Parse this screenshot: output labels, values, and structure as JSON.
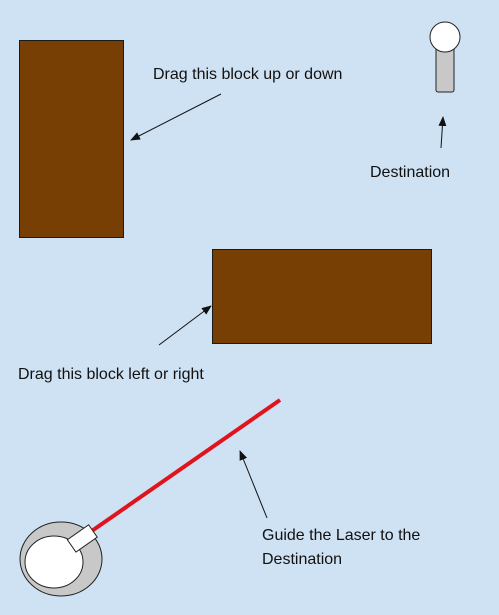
{
  "instructions": {
    "vertical_block": "Drag this block up or down",
    "destination": "Destination",
    "horizontal_block": "Drag this block left or right",
    "laser": "Guide the Laser to the Destination"
  },
  "colors": {
    "background": "#cfe2f3",
    "block": "#783f04",
    "laser": "#e0141c",
    "device_body": "#c8c8c8",
    "device_lens": "#ffffff",
    "target_post": "#c8c8c8",
    "target_head": "#ffffff"
  },
  "icons": {
    "laser_emitter": "laser-emitter-icon",
    "destination_target": "destination-target-icon"
  }
}
